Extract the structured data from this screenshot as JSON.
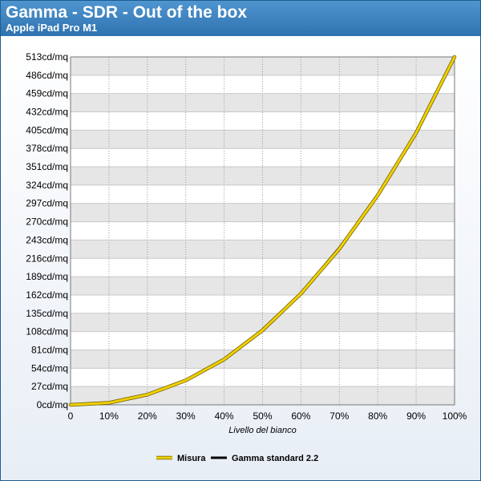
{
  "header": {
    "title": "Gamma - SDR - Out of the box",
    "subtitle": "Apple iPad Pro M1"
  },
  "chart_data": {
    "type": "line",
    "title": "Gamma - SDR - Out of the box",
    "subtitle": "Apple iPad Pro M1",
    "xlabel": "Livello del bianco",
    "ylabel": "",
    "x_ticks": [
      "0",
      "10%",
      "20%",
      "30%",
      "40%",
      "50%",
      "60%",
      "70%",
      "80%",
      "90%",
      "100%"
    ],
    "y_ticks": [
      "0cd/mq",
      "27cd/mq",
      "54cd/mq",
      "81cd/mq",
      "108cd/mq",
      "135cd/mq",
      "162cd/mq",
      "189cd/mq",
      "216cd/mq",
      "243cd/mq",
      "270cd/mq",
      "297cd/mq",
      "324cd/mq",
      "351cd/mq",
      "378cd/mq",
      "405cd/mq",
      "432cd/mq",
      "459cd/mq",
      "486cd/mq",
      "513cd/mq"
    ],
    "xlim": [
      0,
      100
    ],
    "ylim": [
      0,
      513
    ],
    "grid": true,
    "legend": "bottom-center",
    "x": [
      0,
      10,
      20,
      30,
      40,
      50,
      60,
      70,
      80,
      90,
      100
    ],
    "series": [
      {
        "name": "Misura",
        "color": "#f0d000",
        "values": [
          0,
          3,
          15,
          36,
          67,
          110,
          164,
          230,
          309,
          401,
          513
        ]
      },
      {
        "name": "Gamma standard 2.2",
        "color": "#000000",
        "values": [
          0,
          3,
          15,
          36,
          68,
          112,
          166,
          233,
          311,
          402,
          513
        ]
      }
    ]
  }
}
